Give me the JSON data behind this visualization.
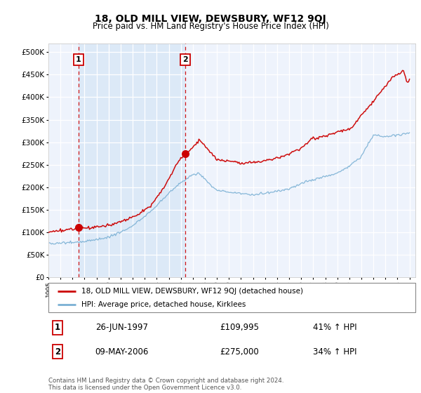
{
  "title": "18, OLD MILL VIEW, DEWSBURY, WF12 9QJ",
  "subtitle": "Price paid vs. HM Land Registry's House Price Index (HPI)",
  "legend_line1": "18, OLD MILL VIEW, DEWSBURY, WF12 9QJ (detached house)",
  "legend_line2": "HPI: Average price, detached house, Kirklees",
  "sale1_label": "1",
  "sale1_date": "26-JUN-1997",
  "sale1_price": "£109,995",
  "sale1_hpi": "41% ↑ HPI",
  "sale1_year": 1997.5,
  "sale1_value": 109995,
  "sale2_label": "2",
  "sale2_date": "09-MAY-2006",
  "sale2_price": "£275,000",
  "sale2_hpi": "34% ↑ HPI",
  "sale2_year": 2006.37,
  "sale2_value": 275000,
  "red_color": "#cc0000",
  "blue_color": "#7ab0d4",
  "shade_color": "#dce9f7",
  "plot_bg": "#eef3fc",
  "grid_color": "#ffffff",
  "ylim": [
    0,
    520000
  ],
  "yticks": [
    0,
    50000,
    100000,
    150000,
    200000,
    250000,
    300000,
    350000,
    400000,
    450000,
    500000
  ],
  "xlim_start": 1995.0,
  "xlim_end": 2025.5,
  "footer": "Contains HM Land Registry data © Crown copyright and database right 2024.\nThis data is licensed under the Open Government Licence v3.0."
}
